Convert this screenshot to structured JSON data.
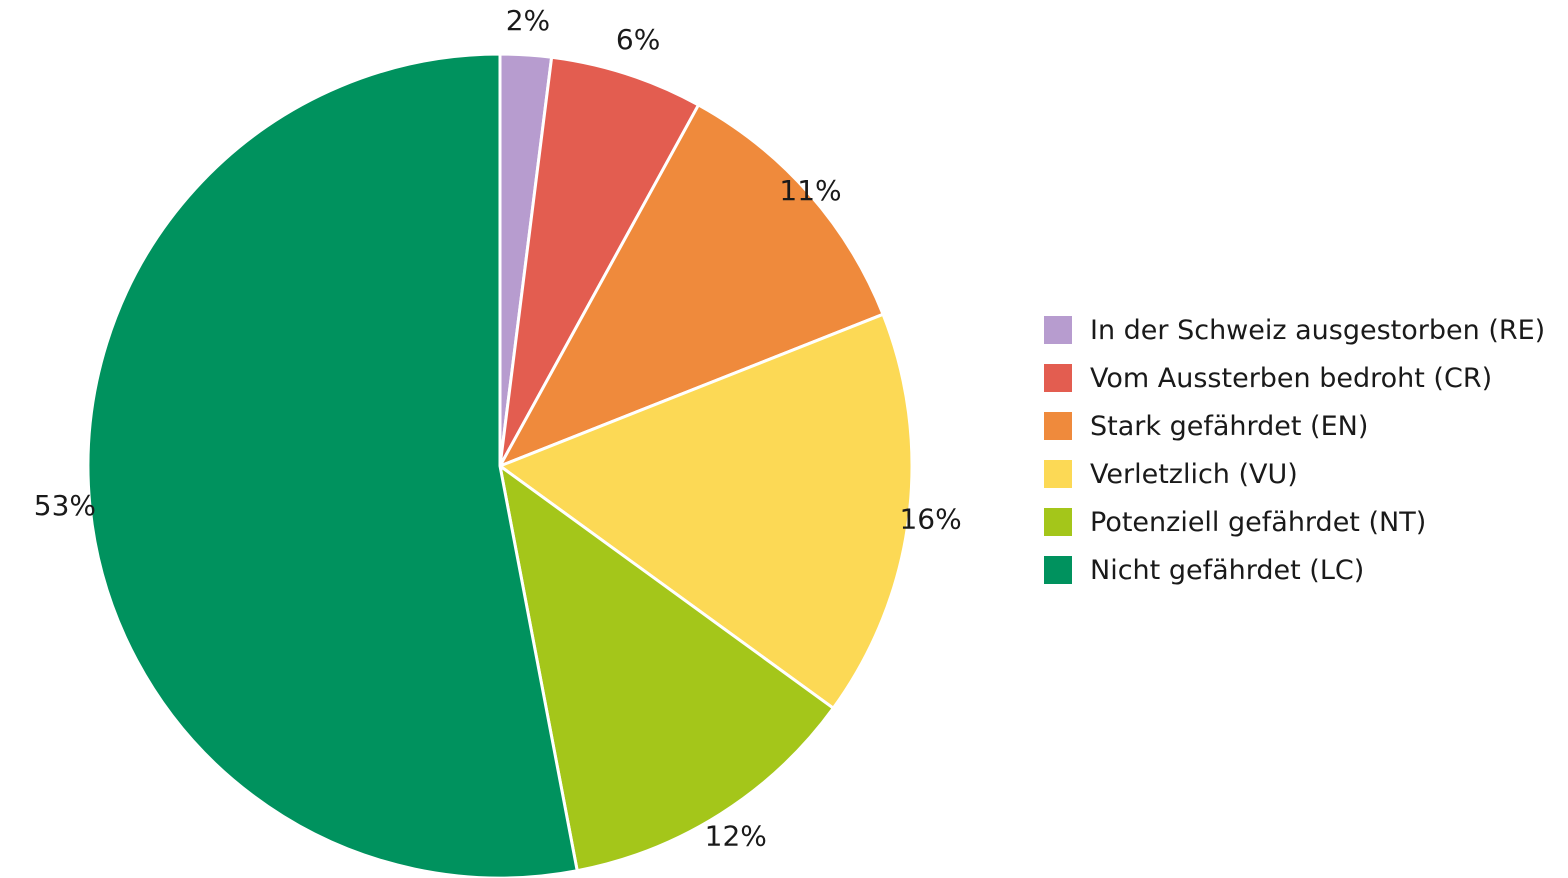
{
  "chart_data": {
    "type": "pie",
    "title": "",
    "legend_position": "right",
    "slices": [
      {
        "label": "In der Schweiz ausgestorben (RE)",
        "value": 2,
        "display": "2%",
        "color": "#b79ccf"
      },
      {
        "label": "Vom Aussterben bedroht (CR)",
        "value": 6,
        "display": "6%",
        "color": "#e35d50"
      },
      {
        "label": "Stark gefährdet (EN)",
        "value": 11,
        "display": "11%",
        "color": "#ef8a3c"
      },
      {
        "label": "Verletzlich (VU)",
        "value": 16,
        "display": "16%",
        "color": "#fcd955"
      },
      {
        "label": "Potenziell gefährdet (NT)",
        "value": 12,
        "display": "12%",
        "color": "#a4c61a"
      },
      {
        "label": "Nicht gefährdet (LC)",
        "value": 53,
        "display": "53%",
        "color": "#00925e"
      }
    ]
  }
}
